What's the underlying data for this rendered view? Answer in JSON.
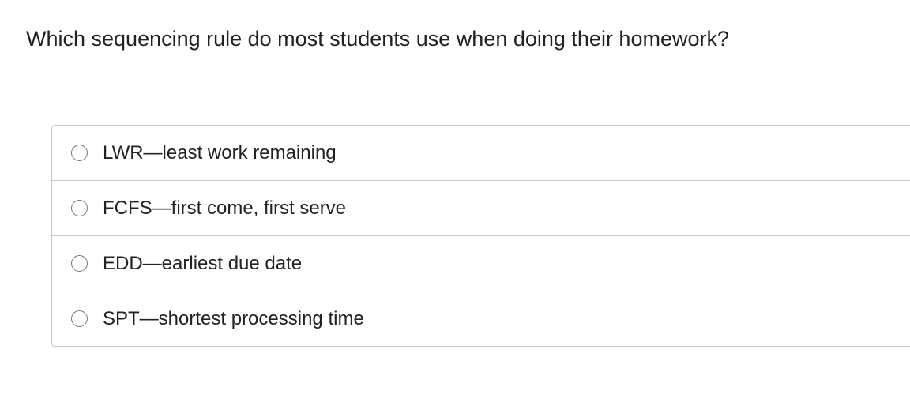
{
  "question": "Which sequencing rule do most students use when doing their homework?",
  "options": [
    {
      "label": "LWR—least work remaining",
      "selected": false
    },
    {
      "label": "FCFS—first come, first serve",
      "selected": false
    },
    {
      "label": "EDD—earliest due date",
      "selected": false
    },
    {
      "label": "SPT—shortest processing time",
      "selected": false
    }
  ]
}
